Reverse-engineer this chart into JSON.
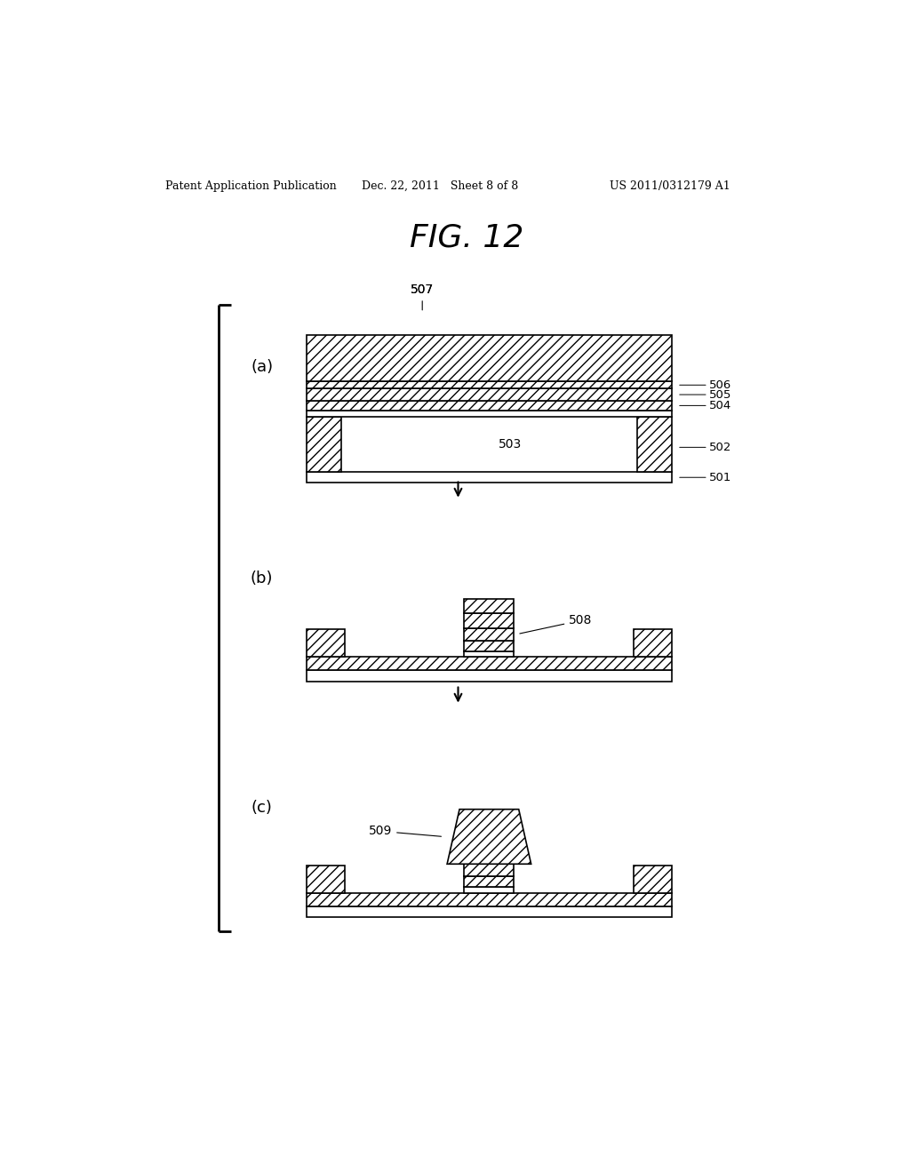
{
  "bg_color": "#ffffff",
  "header_left": "Patent Application Publication",
  "header_mid": "Dec. 22, 2011   Sheet 8 of 8",
  "header_right": "US 2011/0312179 A1",
  "fig_title": "FIG. 12",
  "panel_a": "(a)",
  "panel_b": "(b)",
  "panel_c": "(c)",
  "line_color": "#000000",
  "hatch_pattern": "///",
  "hatch_pattern2": "///"
}
